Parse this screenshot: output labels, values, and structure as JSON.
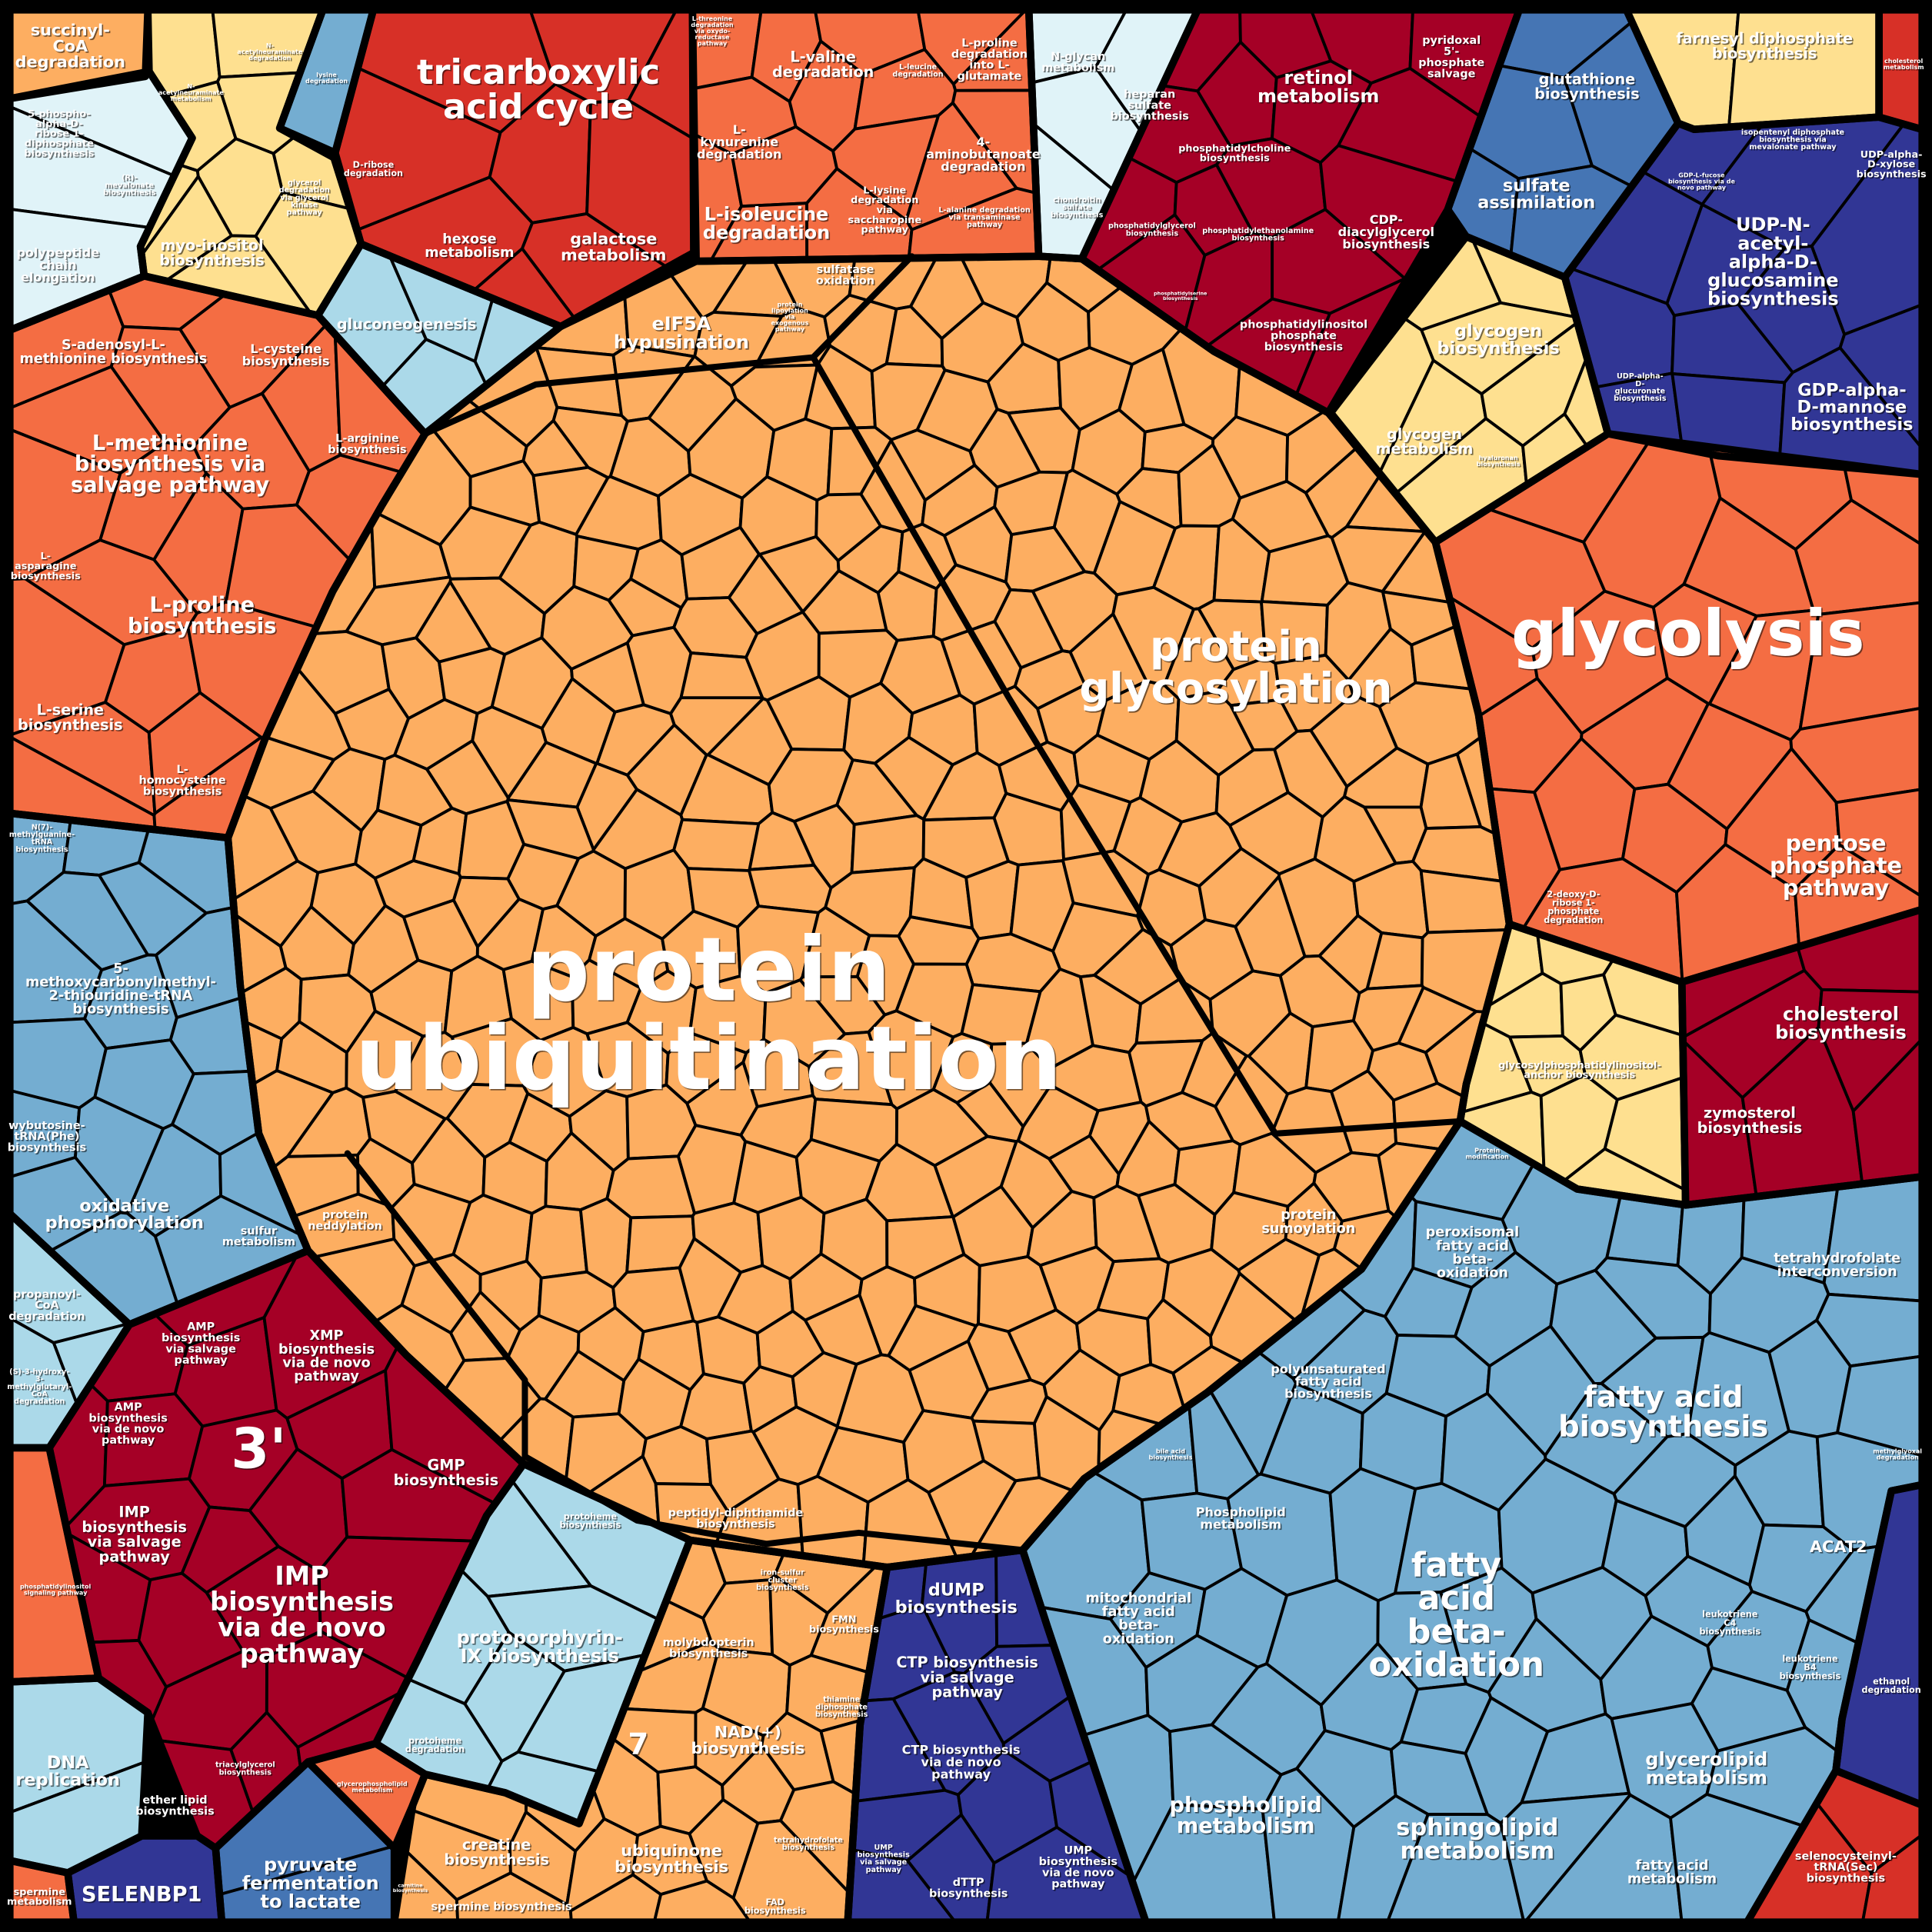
{
  "palette": {
    "light_orange": "#fdae61",
    "orange_red": "#f46d43",
    "red": "#d73027",
    "dark_red": "#a50026",
    "yellow": "#fee090",
    "very_light_blue": "#e0f3f8",
    "light_blue": "#abd9e9",
    "mid_blue": "#74add1",
    "blue": "#4575b4",
    "navy": "#313695",
    "border": "#000000"
  },
  "labels": [
    {
      "lines": [
        "succinyl-",
        "CoA",
        "degradation"
      ]
    },
    {
      "lines": [
        "N-",
        "acetylneuraminate",
        "metabolism"
      ]
    },
    {
      "lines": [
        "N-",
        "acetylneuraminate",
        "degradation"
      ]
    },
    {
      "lines": [
        "lysine",
        "degradation"
      ]
    },
    {
      "lines": [
        "5-phospho-",
        "alpha-D-",
        "ribose 1-",
        "diphosphate",
        "biosynthesis"
      ]
    },
    {
      "lines": [
        "(R)-",
        "mevalonate",
        "biosynthesis"
      ]
    },
    {
      "lines": [
        "glycerol",
        "degradation",
        "via glycerol",
        "kinase",
        "pathway"
      ]
    },
    {
      "lines": [
        "polypeptide",
        "chain",
        "elongation"
      ]
    },
    {
      "lines": [
        "myo-inositol",
        "biosynthesis"
      ]
    },
    {
      "lines": [
        "tricarboxylic",
        "acid cycle"
      ]
    },
    {
      "lines": [
        "D-ribose",
        "degradation"
      ]
    },
    {
      "lines": [
        "hexose",
        "metabolism"
      ]
    },
    {
      "lines": [
        "galactose",
        "metabolism"
      ]
    },
    {
      "lines": [
        "gluconeogenesis"
      ]
    },
    {
      "lines": [
        "L-threonine",
        "degradation",
        "via oxydo-",
        "reductase",
        "pathway"
      ]
    },
    {
      "lines": [
        "L-valine",
        "degradation"
      ]
    },
    {
      "lines": [
        "L-leucine",
        "degradation"
      ]
    },
    {
      "lines": [
        "L-proline",
        "degradation",
        "into L-",
        "glutamate"
      ]
    },
    {
      "lines": [
        "L-",
        "kynurenine",
        "degradation"
      ]
    },
    {
      "lines": [
        "4-",
        "aminobutanoate",
        "degradation"
      ]
    },
    {
      "lines": [
        "L-isoleucine",
        "degradation"
      ]
    },
    {
      "lines": [
        "L-lysine",
        "degradation",
        "via",
        "saccharopine",
        "pathway"
      ]
    },
    {
      "lines": [
        "L-alanine degradation",
        "via transaminase",
        "pathway"
      ]
    },
    {
      "lines": [
        "N-glycan",
        "metabolism"
      ]
    },
    {
      "lines": [
        "heparan",
        "sulfate",
        "biosynthesis"
      ]
    },
    {
      "lines": [
        "chondroitin",
        "sulfate",
        "biosynthesis"
      ]
    },
    {
      "lines": [
        "retinol",
        "metabolism"
      ]
    },
    {
      "lines": [
        "pyridoxal",
        "5'-",
        "phosphate",
        "salvage"
      ]
    },
    {
      "lines": [
        "phosphatidylcholine",
        "biosynthesis"
      ]
    },
    {
      "lines": [
        "phosphatidylglycerol",
        "biosynthesis"
      ]
    },
    {
      "lines": [
        "phosphatidylethanolamine",
        "biosynthesis"
      ]
    },
    {
      "lines": [
        "phosphatidylserine",
        "biosynthesis"
      ]
    },
    {
      "lines": [
        "CDP-",
        "diacylglycerol",
        "biosynthesis"
      ]
    },
    {
      "lines": [
        "phosphatidylinositol",
        "phosphate",
        "biosynthesis"
      ]
    },
    {
      "lines": [
        "glutathione",
        "biosynthesis"
      ]
    },
    {
      "lines": [
        "sulfate",
        "assimilation"
      ]
    },
    {
      "lines": [
        "farnesyl diphosphate",
        "biosynthesis"
      ]
    },
    {
      "lines": [
        "isopentenyl diphosphate",
        "biosynthesis via",
        "mevalonate pathway"
      ]
    },
    {
      "lines": [
        "cholesterol",
        "metabolism"
      ]
    },
    {
      "lines": [
        "GDP-L-fucose",
        "biosynthesis via de",
        "novo pathway"
      ]
    },
    {
      "lines": [
        "UDP-alpha-",
        "D-xylose",
        "biosynthesis"
      ]
    },
    {
      "lines": [
        "UDP-N-",
        "acetyl-",
        "alpha-D-",
        "glucosamine",
        "biosynthesis"
      ]
    },
    {
      "lines": [
        "UDP-alpha-",
        "D-",
        "glucuronate",
        "biosynthesis"
      ]
    },
    {
      "lines": [
        "GDP-alpha-",
        "D-mannose",
        "biosynthesis"
      ]
    },
    {
      "lines": [
        "glycogen",
        "biosynthesis"
      ]
    },
    {
      "lines": [
        "glycogen",
        "metabolism"
      ]
    },
    {
      "lines": [
        "hyaluronan",
        "biosynthesis"
      ]
    },
    {
      "lines": [
        "eIF5A",
        "hypusination"
      ]
    },
    {
      "lines": [
        "protein",
        "lipoylation",
        "via",
        "exogenous",
        "pathway"
      ]
    },
    {
      "lines": [
        "sulfatase",
        "oxidation"
      ]
    },
    {
      "lines": [
        "S-adenosyl-L-",
        "methionine biosynthesis"
      ]
    },
    {
      "lines": [
        "L-cysteine",
        "biosynthesis"
      ]
    },
    {
      "lines": [
        "L-arginine",
        "biosynthesis"
      ]
    },
    {
      "lines": [
        "L-methionine",
        "biosynthesis via",
        "salvage pathway"
      ]
    },
    {
      "lines": [
        "L-",
        "asparagine",
        "biosynthesis"
      ]
    },
    {
      "lines": [
        "L-proline",
        "biosynthesis"
      ]
    },
    {
      "lines": [
        "L-serine",
        "biosynthesis"
      ]
    },
    {
      "lines": [
        "L-",
        "homocysteine",
        "biosynthesis"
      ]
    },
    {
      "lines": [
        "protein",
        "glycosylation"
      ]
    },
    {
      "lines": [
        "glycolysis"
      ]
    },
    {
      "lines": [
        "pentose",
        "phosphate",
        "pathway"
      ]
    },
    {
      "lines": [
        "2-deoxy-D-",
        "ribose 1-",
        "phosphate",
        "degradation"
      ]
    },
    {
      "lines": [
        "cholesterol",
        "biosynthesis"
      ]
    },
    {
      "lines": [
        "zymosterol",
        "biosynthesis"
      ]
    },
    {
      "lines": [
        "glycosylphosphatidylinositol-",
        "anchor biosynthesis"
      ]
    },
    {
      "lines": [
        "Protein",
        "modification"
      ]
    },
    {
      "lines": [
        "protein",
        "ubiquitination"
      ]
    },
    {
      "lines": [
        "N(7)-",
        "methylguanine-",
        "tRNA",
        "biosynthesis"
      ]
    },
    {
      "lines": [
        "5-",
        "methoxycarbonylmethyl-",
        "2-thiouridine-tRNA",
        "biosynthesis"
      ]
    },
    {
      "lines": [
        "wybutosine-",
        "tRNA(Phe)",
        "biosynthesis"
      ]
    },
    {
      "lines": [
        "oxidative",
        "phosphorylation"
      ]
    },
    {
      "lines": [
        "sulfur",
        "metabolism"
      ]
    },
    {
      "lines": [
        "protein",
        "neddylation"
      ]
    },
    {
      "lines": [
        "protein",
        "sumoylation"
      ]
    },
    {
      "lines": [
        "propanoyl-",
        "CoA",
        "degradation"
      ]
    },
    {
      "lines": [
        "(S)-3-hydroxy-",
        "3-",
        "methylglutaryl-",
        "CoA",
        "degradation"
      ]
    },
    {
      "lines": [
        "AMP",
        "biosynthesis",
        "via salvage",
        "pathway"
      ]
    },
    {
      "lines": [
        "XMP",
        "biosynthesis",
        "via de novo",
        "pathway"
      ]
    },
    {
      "lines": [
        "AMP",
        "biosynthesis",
        "via de novo",
        "pathway"
      ]
    },
    {
      "lines": [
        "3'"
      ]
    },
    {
      "lines": [
        "GMP",
        "biosynthesis"
      ]
    },
    {
      "lines": [
        "IMP",
        "biosynthesis",
        "via salvage",
        "pathway"
      ]
    },
    {
      "lines": [
        "IMP",
        "biosynthesis",
        "via de novo",
        "pathway"
      ]
    },
    {
      "lines": [
        "phosphatidylinositol",
        "signaling pathway"
      ]
    },
    {
      "lines": [
        "DNA",
        "replication"
      ]
    },
    {
      "lines": [
        "ether lipid",
        "biosynthesis"
      ]
    },
    {
      "lines": [
        "triacylglycerol",
        "biosynthesis"
      ]
    },
    {
      "lines": [
        "glycerophospholipid",
        "metabolism"
      ]
    },
    {
      "lines": [
        "SELENBP1"
      ]
    },
    {
      "lines": [
        "pyruvate",
        "fermentation",
        "to lactate"
      ]
    },
    {
      "lines": [
        "spermine",
        "metabolism"
      ]
    },
    {
      "lines": [
        "protoheme",
        "biosynthesis"
      ]
    },
    {
      "lines": [
        "protoporphyrin-",
        "IX biosynthesis"
      ]
    },
    {
      "lines": [
        "protoheme",
        "degradation"
      ]
    },
    {
      "lines": [
        "peptidyl-diphthamide",
        "biosynthesis"
      ]
    },
    {
      "lines": [
        "iron-sulfur",
        "cluster",
        "biosynthesis"
      ]
    },
    {
      "lines": [
        "FMN",
        "biosynthesis"
      ]
    },
    {
      "lines": [
        "molybdopterin",
        "biosynthesis"
      ]
    },
    {
      "lines": [
        "thiamine",
        "diphosphate",
        "biosynthesis"
      ]
    },
    {
      "lines": [
        "7"
      ]
    },
    {
      "lines": [
        "NAD(+)",
        "biosynthesis"
      ]
    },
    {
      "lines": [
        "creatine",
        "biosynthesis"
      ]
    },
    {
      "lines": [
        "carnitine",
        "biosynthesis"
      ]
    },
    {
      "lines": [
        "spermine biosynthesis"
      ]
    },
    {
      "lines": [
        "ubiquinone",
        "biosynthesis"
      ]
    },
    {
      "lines": [
        "tetrahydrofolate",
        "biosynthesis"
      ]
    },
    {
      "lines": [
        "FAD",
        "biosynthesis"
      ]
    },
    {
      "lines": [
        "dUMP",
        "biosynthesis"
      ]
    },
    {
      "lines": [
        "CTP biosynthesis",
        "via salvage",
        "pathway"
      ]
    },
    {
      "lines": [
        "CTP biosynthesis",
        "via de novo",
        "pathway"
      ]
    },
    {
      "lines": [
        "UMP",
        "biosynthesis",
        "via salvage",
        "pathway"
      ]
    },
    {
      "lines": [
        "dTTP",
        "biosynthesis"
      ]
    },
    {
      "lines": [
        "UMP",
        "biosynthesis",
        "via de novo",
        "pathway"
      ]
    },
    {
      "lines": [
        "peroxisomal",
        "fatty acid",
        "beta-",
        "oxidation"
      ]
    },
    {
      "lines": [
        "tetrahydrofolate",
        "interconversion"
      ]
    },
    {
      "lines": [
        "polyunsaturated",
        "fatty acid",
        "biosynthesis"
      ]
    },
    {
      "lines": [
        "fatty acid",
        "biosynthesis"
      ]
    },
    {
      "lines": [
        "bile acid",
        "biosynthesis"
      ]
    },
    {
      "lines": [
        "methylglyoxal",
        "degradation"
      ]
    },
    {
      "lines": [
        "Phospholipid",
        "metabolism"
      ]
    },
    {
      "lines": [
        "ACAT2"
      ]
    },
    {
      "lines": [
        "mitochondrial",
        "fatty acid",
        "beta-",
        "oxidation"
      ]
    },
    {
      "lines": [
        "fatty",
        "acid",
        "beta-",
        "oxidation"
      ]
    },
    {
      "lines": [
        "leukotriene",
        "C4",
        "biosynthesis"
      ]
    },
    {
      "lines": [
        "leukotriene",
        "B4",
        "biosynthesis"
      ]
    },
    {
      "lines": [
        "ethanol",
        "degradation"
      ]
    },
    {
      "lines": [
        "glycerolipid",
        "metabolism"
      ]
    },
    {
      "lines": [
        "phospholipid",
        "metabolism"
      ]
    },
    {
      "lines": [
        "sphingolipid",
        "metabolism"
      ]
    },
    {
      "lines": [
        "fatty acid",
        "metabolism"
      ]
    },
    {
      "lines": [
        "selenocysteinyl-",
        "tRNA(Sec)",
        "biosynthesis"
      ]
    }
  ]
}
